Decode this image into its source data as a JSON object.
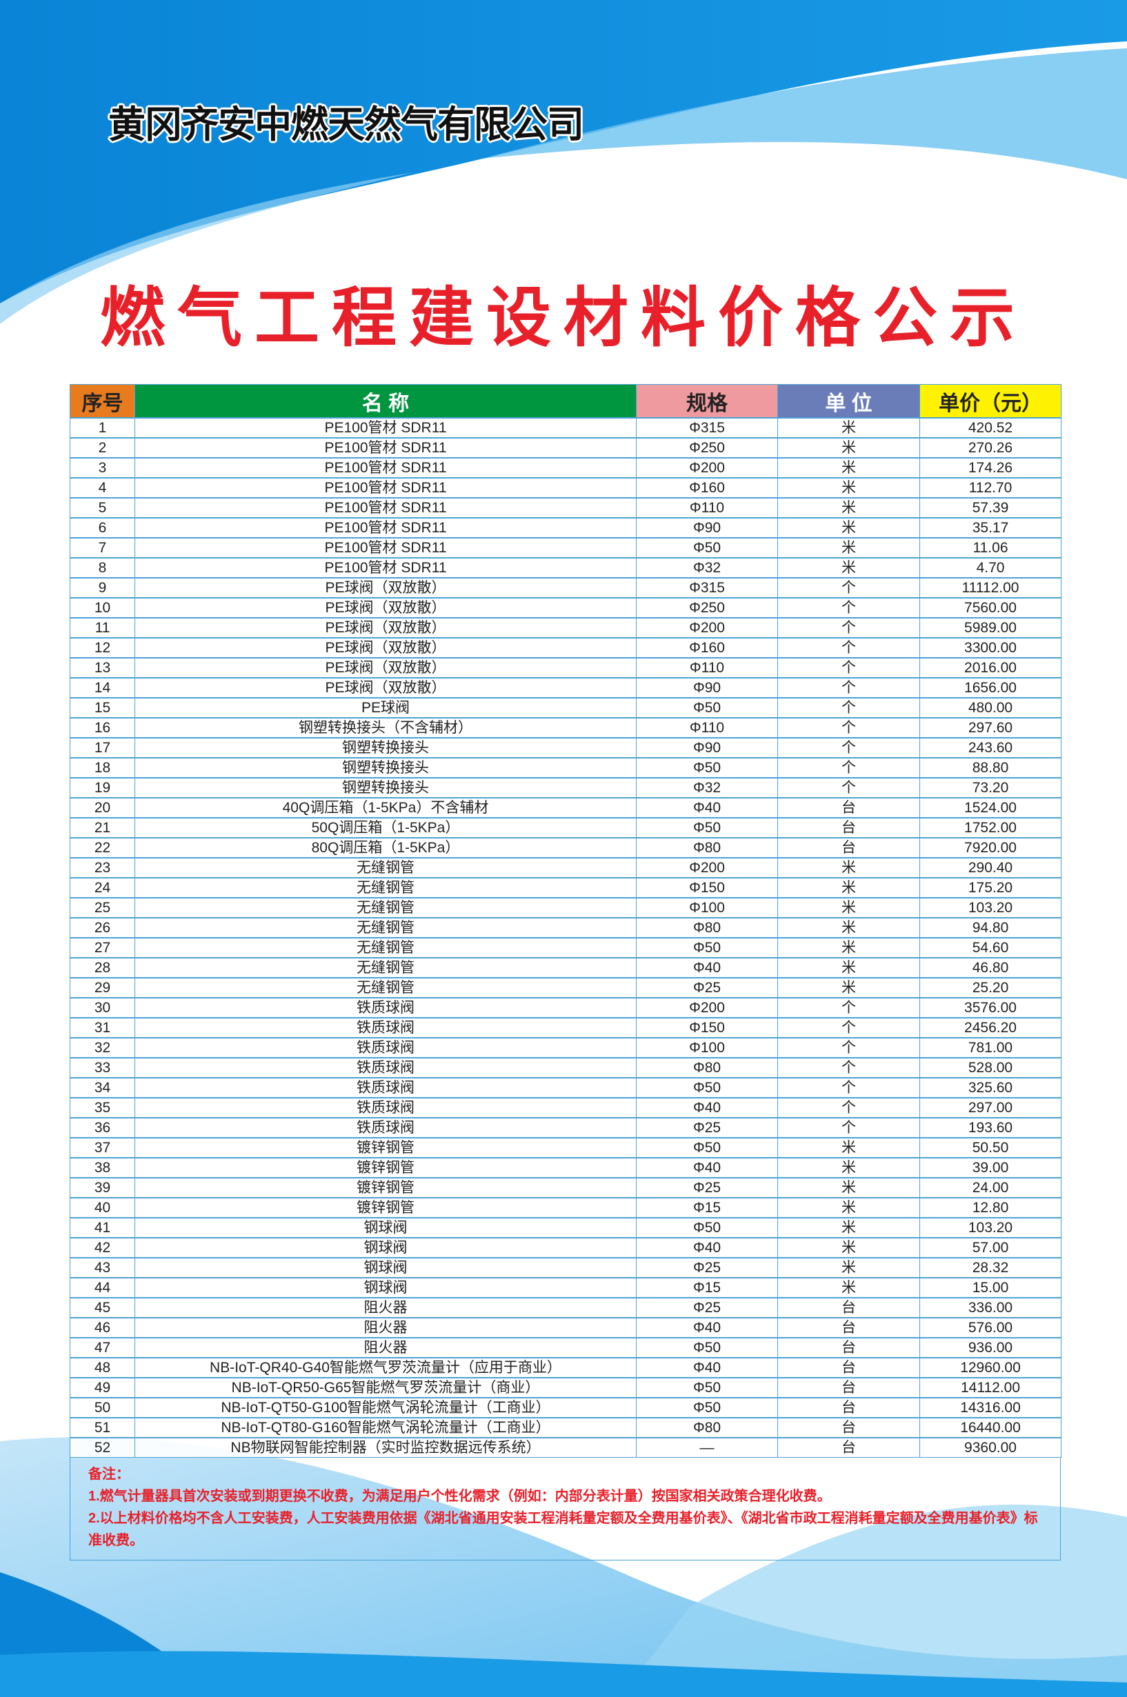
{
  "company": "黄冈齐安中燃天然气有限公司",
  "title": "燃气工程建设材料价格公示",
  "colors": {
    "title": "#e8202a",
    "th_no": "#e87b1e",
    "th_name": "#00953f",
    "th_spec": "#ef9a9f",
    "th_unit": "#6a7db8",
    "th_price": "#fff200",
    "border": "#4aa3d8"
  },
  "table": {
    "headers": [
      "序号",
      "名 称",
      "规格",
      "单 位",
      "单价（元）"
    ],
    "rows": [
      [
        "1",
        "PE100管材 SDR11",
        "Φ315",
        "米",
        "420.52"
      ],
      [
        "2",
        "PE100管材 SDR11",
        "Φ250",
        "米",
        "270.26"
      ],
      [
        "3",
        "PE100管材 SDR11",
        "Φ200",
        "米",
        "174.26"
      ],
      [
        "4",
        "PE100管材 SDR11",
        "Φ160",
        "米",
        "112.70"
      ],
      [
        "5",
        "PE100管材 SDR11",
        "Φ110",
        "米",
        "57.39"
      ],
      [
        "6",
        "PE100管材 SDR11",
        "Φ90",
        "米",
        "35.17"
      ],
      [
        "7",
        "PE100管材 SDR11",
        "Φ50",
        "米",
        "11.06"
      ],
      [
        "8",
        "PE100管材 SDR11",
        "Φ32",
        "米",
        "4.70"
      ],
      [
        "9",
        "PE球阀（双放散）",
        "Φ315",
        "个",
        "11112.00"
      ],
      [
        "10",
        "PE球阀（双放散）",
        "Φ250",
        "个",
        "7560.00"
      ],
      [
        "11",
        "PE球阀（双放散）",
        "Φ200",
        "个",
        "5989.00"
      ],
      [
        "12",
        "PE球阀（双放散）",
        "Φ160",
        "个",
        "3300.00"
      ],
      [
        "13",
        "PE球阀（双放散）",
        "Φ110",
        "个",
        "2016.00"
      ],
      [
        "14",
        "PE球阀（双放散）",
        "Φ90",
        "个",
        "1656.00"
      ],
      [
        "15",
        "PE球阀",
        "Φ50",
        "个",
        "480.00"
      ],
      [
        "16",
        "钢塑转换接头（不含辅材）",
        "Φ110",
        "个",
        "297.60"
      ],
      [
        "17",
        "钢塑转换接头",
        "Φ90",
        "个",
        "243.60"
      ],
      [
        "18",
        "钢塑转换接头",
        "Φ50",
        "个",
        "88.80"
      ],
      [
        "19",
        "钢塑转换接头",
        "Φ32",
        "个",
        "73.20"
      ],
      [
        "20",
        "40Q调压箱（1-5KPa）不含辅材",
        "Φ40",
        "台",
        "1524.00"
      ],
      [
        "21",
        "50Q调压箱（1-5KPa）",
        "Φ50",
        "台",
        "1752.00"
      ],
      [
        "22",
        "80Q调压箱（1-5KPa）",
        "Φ80",
        "台",
        "7920.00"
      ],
      [
        "23",
        "无缝钢管",
        "Φ200",
        "米",
        "290.40"
      ],
      [
        "24",
        "无缝钢管",
        "Φ150",
        "米",
        "175.20"
      ],
      [
        "25",
        "无缝钢管",
        "Φ100",
        "米",
        "103.20"
      ],
      [
        "26",
        "无缝钢管",
        "Φ80",
        "米",
        "94.80"
      ],
      [
        "27",
        "无缝钢管",
        "Φ50",
        "米",
        "54.60"
      ],
      [
        "28",
        "无缝钢管",
        "Φ40",
        "米",
        "46.80"
      ],
      [
        "29",
        "无缝钢管",
        "Φ25",
        "米",
        "25.20"
      ],
      [
        "30",
        "铁质球阀",
        "Φ200",
        "个",
        "3576.00"
      ],
      [
        "31",
        "铁质球阀",
        "Φ150",
        "个",
        "2456.20"
      ],
      [
        "32",
        "铁质球阀",
        "Φ100",
        "个",
        "781.00"
      ],
      [
        "33",
        "铁质球阀",
        "Φ80",
        "个",
        "528.00"
      ],
      [
        "34",
        "铁质球阀",
        "Φ50",
        "个",
        "325.60"
      ],
      [
        "35",
        "铁质球阀",
        "Φ40",
        "个",
        "297.00"
      ],
      [
        "36",
        "铁质球阀",
        "Φ25",
        "个",
        "193.60"
      ],
      [
        "37",
        "镀锌钢管",
        "Φ50",
        "米",
        "50.50"
      ],
      [
        "38",
        "镀锌钢管",
        "Φ40",
        "米",
        "39.00"
      ],
      [
        "39",
        "镀锌钢管",
        "Φ25",
        "米",
        "24.00"
      ],
      [
        "40",
        "镀锌钢管",
        "Φ15",
        "米",
        "12.80"
      ],
      [
        "41",
        "钢球阀",
        "Φ50",
        "米",
        "103.20"
      ],
      [
        "42",
        "钢球阀",
        "Φ40",
        "米",
        "57.00"
      ],
      [
        "43",
        "钢球阀",
        "Φ25",
        "米",
        "28.32"
      ],
      [
        "44",
        "钢球阀",
        "Φ15",
        "米",
        "15.00"
      ],
      [
        "45",
        "阻火器",
        "Φ25",
        "台",
        "336.00"
      ],
      [
        "46",
        "阻火器",
        "Φ40",
        "台",
        "576.00"
      ],
      [
        "47",
        "阻火器",
        "Φ50",
        "台",
        "936.00"
      ],
      [
        "48",
        "NB-IoT-QR40-G40智能燃气罗茨流量计（应用于商业）",
        "Φ40",
        "台",
        "12960.00"
      ],
      [
        "49",
        "NB-IoT-QR50-G65智能燃气罗茨流量计（商业）",
        "Φ50",
        "台",
        "14112.00"
      ],
      [
        "50",
        "NB-IoT-QT50-G100智能燃气涡轮流量计（工商业）",
        "Φ50",
        "台",
        "14316.00"
      ],
      [
        "51",
        "NB-IoT-QT80-G160智能燃气涡轮流量计（工商业）",
        "Φ80",
        "台",
        "16440.00"
      ],
      [
        "52",
        "NB物联网智能控制器（实时监控数据远传系统）",
        "—",
        "台",
        "9360.00"
      ]
    ]
  },
  "notes": {
    "label": "备注：",
    "items": [
      "1.燃气计量器具首次安装或到期更换不收费，为满足用户个性化需求（例如：内部分表计量）按国家相关政策合理化收费。",
      "2.以上材料价格均不含人工安装费，人工安装费用依据《湖北省通用安装工程消耗量定额及全费用基价表》、《湖北省市政工程消耗量定额及全费用基价表》标准收费。"
    ]
  }
}
